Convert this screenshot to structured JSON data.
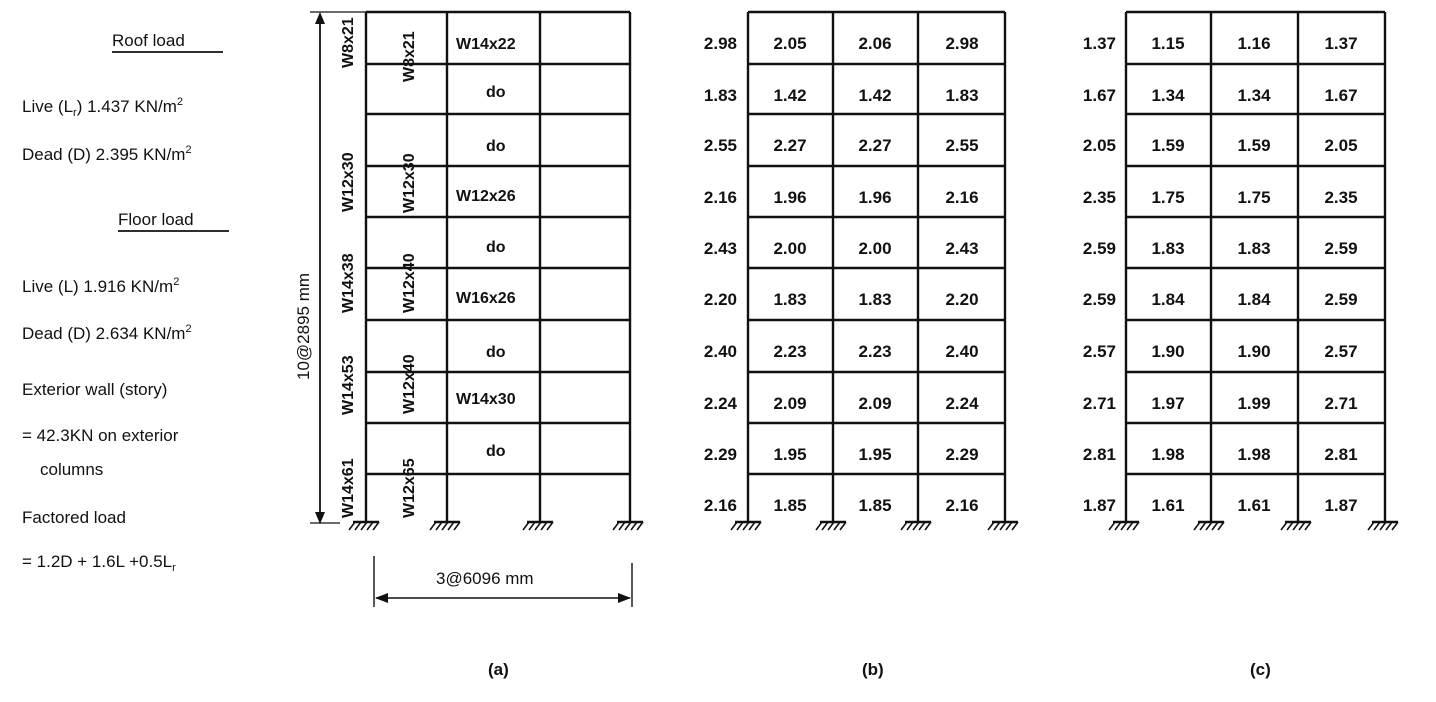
{
  "legend": {
    "roof_heading": "Roof load",
    "roof_live": "Live (L",
    "roof_live_sub": "r",
    "roof_live_value": ") 1.437 KN/m",
    "roof_dead": "Dead (D) 2.395 KN/m",
    "floor_heading": "Floor load",
    "floor_live": "Live (L)  1.916 KN/m",
    "floor_dead": "Dead (D) 2.634 KN/m",
    "squared": "2",
    "wall_line1": "Exterior wall (story)",
    "wall_line2": "= 42.3KN on exterior",
    "wall_line3": "columns",
    "factored_line1": "Factored load",
    "factored_line2": "= 1.2D + 1.6L +0.5L",
    "factored_sub": "r"
  },
  "frame_a": {
    "height_dim": "10@2895 mm",
    "width_dim": "3@6096 mm",
    "exterior_columns": [
      "W8x21",
      "W12x30",
      "W14x38",
      "W14x53",
      "W14x61"
    ],
    "interior_columns": [
      "W8x21",
      "W12x30",
      "W12x40",
      "W12x40",
      "W12x65"
    ],
    "beams": [
      "W14x22",
      "do",
      "do",
      "W12x26",
      "do",
      "W16x26",
      "do",
      "W14x30",
      "do"
    ]
  },
  "frame_b": {
    "rows": [
      [
        "2.98",
        "2.05",
        "2.06",
        "2.98"
      ],
      [
        "1.83",
        "1.42",
        "1.42",
        "1.83"
      ],
      [
        "2.55",
        "2.27",
        "2.27",
        "2.55"
      ],
      [
        "2.16",
        "1.96",
        "1.96",
        "2.16"
      ],
      [
        "2.43",
        "2.00",
        "2.00",
        "2.43"
      ],
      [
        "2.20",
        "1.83",
        "1.83",
        "2.20"
      ],
      [
        "2.40",
        "2.23",
        "2.23",
        "2.40"
      ],
      [
        "2.24",
        "2.09",
        "2.09",
        "2.24"
      ],
      [
        "2.29",
        "1.95",
        "1.95",
        "2.29"
      ],
      [
        "2.16",
        "1.85",
        "1.85",
        "2.16"
      ]
    ]
  },
  "frame_c": {
    "rows": [
      [
        "1.37",
        "1.15",
        "1.16",
        "1.37"
      ],
      [
        "1.67",
        "1.34",
        "1.34",
        "1.67"
      ],
      [
        "2.05",
        "1.59",
        "1.59",
        "2.05"
      ],
      [
        "2.35",
        "1.75",
        "1.75",
        "2.35"
      ],
      [
        "2.59",
        "1.83",
        "1.83",
        "2.59"
      ],
      [
        "2.59",
        "1.84",
        "1.84",
        "2.59"
      ],
      [
        "2.57",
        "1.90",
        "1.90",
        "2.57"
      ],
      [
        "2.71",
        "1.97",
        "1.99",
        "2.71"
      ],
      [
        "2.81",
        "1.98",
        "1.98",
        "2.81"
      ],
      [
        "1.87",
        "1.61",
        "1.61",
        "1.87"
      ]
    ]
  },
  "captions": {
    "a": "(a)",
    "b": "(b)",
    "c": "(c)"
  }
}
